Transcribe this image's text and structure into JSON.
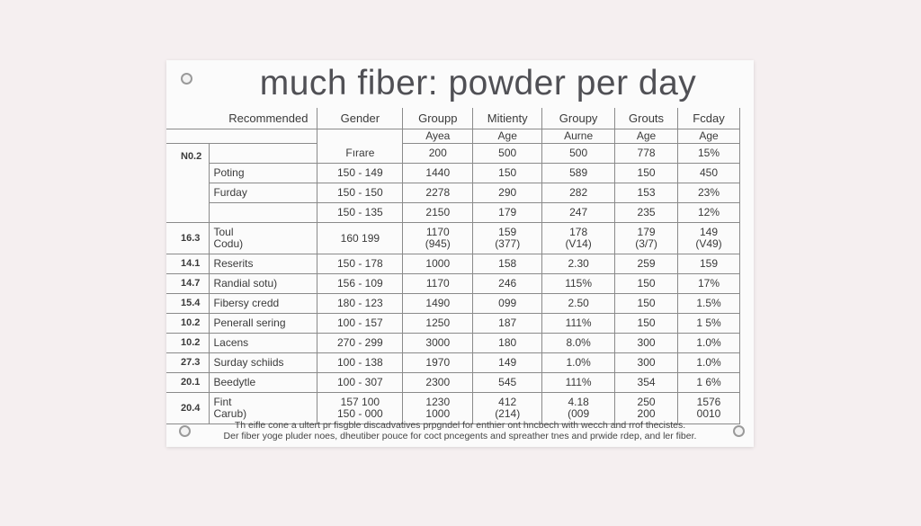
{
  "title": "much fiber: powder per day",
  "table": {
    "header_top": [
      "Recommended",
      "Gender",
      "Groupp",
      "Mitienty",
      "Groupy",
      "Grouts",
      "Fcday"
    ],
    "header_sub": [
      "Fırare",
      "Ayea",
      "Age",
      "Aurne",
      "Age",
      "Age"
    ],
    "first_row_label": "N0.2",
    "rows": [
      {
        "idx": "",
        "name": "",
        "cells": [
          "Fırare",
          "200",
          "500",
          "500",
          "778",
          "15%"
        ]
      },
      {
        "idx": "",
        "name": "Poting",
        "cells": [
          "150 - 149",
          "1440",
          "150",
          "589",
          "150",
          "450"
        ]
      },
      {
        "idx": "",
        "name": "Furday",
        "cells": [
          "150 - 150",
          "2278",
          "290",
          "282",
          "153",
          "23%"
        ]
      },
      {
        "idx": "",
        "name": "",
        "cells": [
          "150 - 135",
          "2150",
          "179",
          "247",
          "235",
          "12%"
        ]
      },
      {
        "idx": "16.3",
        "name": "Toul\nCodu)",
        "cells": [
          "160   199",
          "1170\n(945)",
          "159\n(377)",
          "178\n(V14)",
          "179\n(3/7)",
          "149\n(V49)"
        ]
      },
      {
        "idx": "14.1",
        "name": "Reserits",
        "cells": [
          "150 - 178",
          "1000",
          "158",
          "2.30",
          "259",
          "159"
        ]
      },
      {
        "idx": "14.7",
        "name": "Randial sotu)",
        "cells": [
          "156 - 109",
          "1170",
          "246",
          "115%",
          "150",
          "17%"
        ]
      },
      {
        "idx": "15.4",
        "name": "Fibersy credd",
        "cells": [
          "180 - 123",
          "1490",
          "099",
          "2.50",
          "150",
          "1.5%"
        ]
      },
      {
        "idx": "10.2",
        "name": "Penerall sering",
        "cells": [
          "100 - 157",
          "1250",
          "187",
          "111%",
          "150",
          "1 5%"
        ]
      },
      {
        "idx": "10.2",
        "name": "Lacens",
        "cells": [
          "270 - 299",
          "3000",
          "180",
          "8.0%",
          "300",
          "1.0%"
        ]
      },
      {
        "idx": "27.3",
        "name": "Surday schiids",
        "cells": [
          "100 - 138",
          "1970",
          "149",
          "1.0%",
          "300",
          "1.0%"
        ]
      },
      {
        "idx": "20.1",
        "name": "Beedytle",
        "cells": [
          "100 - 307",
          "2300",
          "545",
          "111%",
          "354",
          "1 6%"
        ]
      },
      {
        "idx": "20.4",
        "name": "Fint\nCarub)",
        "cells": [
          "157   100\n150 - 000",
          "1230\n1000",
          "412\n(214)",
          "4.18\n(009",
          "250\n200",
          "1576\n0010"
        ]
      }
    ]
  },
  "notes": [
    "Th eifle cone a ultert pr fisgble discadvatives prpgndel for enthier ont hncbech with wecch and rrof thecistes.",
    "Der fiber yoge pluder noes, dheutiber pouce for coct pncegents and spreather tnes and prwide rdep, and ler fiber."
  ]
}
